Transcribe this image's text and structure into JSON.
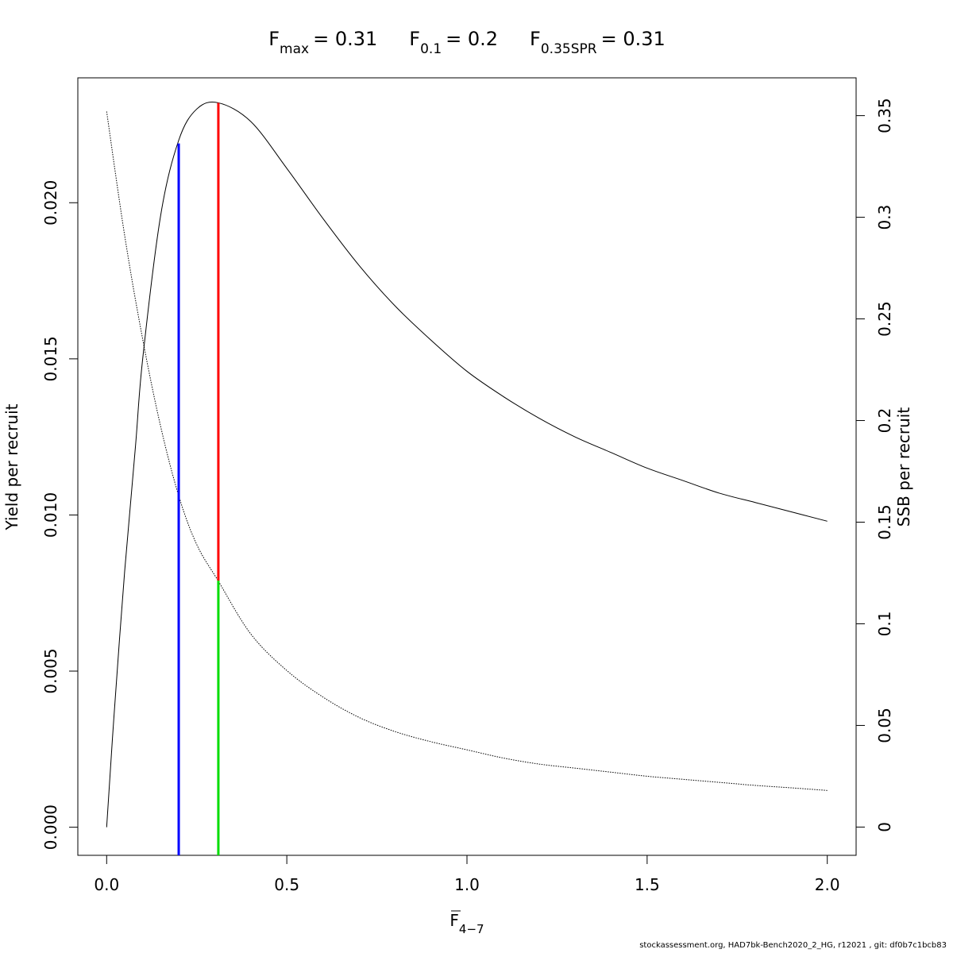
{
  "chart_data": {
    "type": "line",
    "title_parts": [
      {
        "base": "F",
        "sub": "max",
        "value": "= 0.31"
      },
      {
        "base": "F",
        "sub": "0.1",
        "value": "= 0.2"
      },
      {
        "base": "F",
        "sub": "0.35SPR",
        "value": "= 0.31"
      }
    ],
    "xlabel": {
      "base": "F",
      "sub": "4−7"
    },
    "ylabel": "Yield per recruit",
    "y2label": "SSB per recruit",
    "xlim": [
      -0.08,
      2.08
    ],
    "ylim": [
      -0.0009,
      0.024
    ],
    "y2lim": [
      -0.0139,
      0.3686
    ],
    "xticks": [
      0.0,
      0.5,
      1.0,
      1.5,
      2.0
    ],
    "xtick_labels": [
      "0.0",
      "0.5",
      "1.0",
      "1.5",
      "2.0"
    ],
    "yticks": [
      0.0,
      0.005,
      0.01,
      0.015,
      0.02
    ],
    "ytick_labels": [
      "0.000",
      "0.005",
      "0.010",
      "0.015",
      "0.020"
    ],
    "y2ticks": [
      0,
      0.05,
      0.1,
      0.15,
      0.2,
      0.25,
      0.3,
      0.35
    ],
    "y2tick_labels": [
      "0",
      "0.05",
      "0.1",
      "0.15",
      "0.2",
      "0.25",
      "0.3",
      "0.35"
    ],
    "series": [
      {
        "axis": "left",
        "style": "solid",
        "color": "#000000",
        "x": [
          0.0,
          0.02,
          0.05,
          0.08,
          0.1,
          0.15,
          0.2,
          0.25,
          0.31,
          0.4,
          0.5,
          0.6,
          0.7,
          0.8,
          0.9,
          1.0,
          1.1,
          1.2,
          1.3,
          1.4,
          1.5,
          1.6,
          1.7,
          1.8,
          1.9,
          2.0
        ],
        "y": [
          0.0,
          0.0035,
          0.0082,
          0.0122,
          0.015,
          0.0196,
          0.022,
          0.023,
          0.0232,
          0.0226,
          0.0211,
          0.0195,
          0.018,
          0.0167,
          0.0156,
          0.0146,
          0.0138,
          0.0131,
          0.0125,
          0.012,
          0.0115,
          0.0111,
          0.0107,
          0.0104,
          0.0101,
          0.0098
        ]
      },
      {
        "axis": "right",
        "style": "dotted",
        "color": "#000000",
        "x": [
          0.0,
          0.05,
          0.1,
          0.15,
          0.2,
          0.25,
          0.31,
          0.4,
          0.5,
          0.6,
          0.7,
          0.8,
          0.9,
          1.0,
          1.1,
          1.2,
          1.3,
          1.4,
          1.5,
          1.6,
          1.7,
          1.8,
          1.9,
          2.0
        ],
        "y": [
          0.352,
          0.291,
          0.24,
          0.197,
          0.163,
          0.139,
          0.121,
          0.095,
          0.077,
          0.064,
          0.054,
          0.047,
          0.042,
          0.038,
          0.034,
          0.031,
          0.029,
          0.027,
          0.025,
          0.0235,
          0.022,
          0.0205,
          0.0193,
          0.018
        ]
      }
    ],
    "reference_lines": [
      {
        "x": 0.2,
        "y_from": -0.0009,
        "y_to": 0.0219,
        "color": "#0000ff"
      },
      {
        "x": 0.31,
        "y_from": 0.0079,
        "y_to": 0.0232,
        "color": "#ff0000"
      },
      {
        "x": 0.31,
        "y_from": -0.0009,
        "y_to": 0.0079,
        "color": "#00dd00"
      }
    ]
  },
  "footer": "stockassessment.org, HAD7bk-Bench2020_2_HG, r12021 , git: df0b7c1bcb83"
}
